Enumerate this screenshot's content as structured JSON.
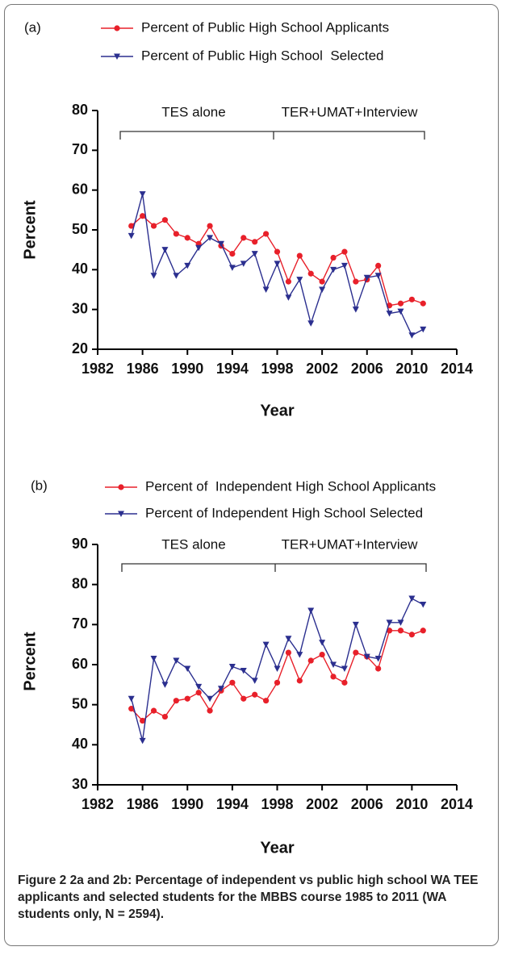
{
  "chart_data": [
    {
      "type": "line",
      "panel": "(a)",
      "annotations": [
        "TES alone",
        "TER+UMAT+Interview"
      ],
      "x_label": "Year",
      "y_label": "Percent",
      "x": [
        1985,
        1986,
        1987,
        1988,
        1989,
        1990,
        1991,
        1992,
        1993,
        1994,
        1995,
        1996,
        1997,
        1998,
        1999,
        2000,
        2001,
        2002,
        2003,
        2004,
        2005,
        2006,
        2007,
        2008,
        2009,
        2010,
        2011
      ],
      "xlim": [
        1982,
        2014
      ],
      "xticks": [
        1982,
        1986,
        1990,
        1994,
        1998,
        2002,
        2006,
        2010,
        2014
      ],
      "ylim": [
        20,
        80
      ],
      "yticks": [
        20,
        30,
        40,
        50,
        60,
        70,
        80
      ],
      "series": [
        {
          "name": "Percent of Public High School Applicants",
          "color": "#e8202a",
          "marker": "circle",
          "values": [
            51,
            53.5,
            51,
            52.5,
            49,
            48,
            46.5,
            51,
            46,
            44,
            48,
            47,
            49,
            44.5,
            37,
            43.5,
            39,
            37,
            43,
            44.5,
            37,
            37.5,
            41,
            31,
            31.5,
            32.5,
            31.5
          ]
        },
        {
          "name": "Percent of Public High School  Selected",
          "color": "#2b2f8f",
          "marker": "triangle-down",
          "values": [
            48.5,
            59,
            38.5,
            45,
            38.5,
            41,
            45.5,
            48,
            46.5,
            40.5,
            41.5,
            44,
            35,
            41.5,
            33,
            37.5,
            26.5,
            35,
            40,
            41,
            30,
            38,
            38.5,
            29,
            29.5,
            23.5,
            25
          ]
        }
      ]
    },
    {
      "type": "line",
      "panel": "(b)",
      "annotations": [
        "TES alone",
        "TER+UMAT+Interview"
      ],
      "x_label": "Year",
      "y_label": "Percent",
      "x": [
        1985,
        1986,
        1987,
        1988,
        1989,
        1990,
        1991,
        1992,
        1993,
        1994,
        1995,
        1996,
        1997,
        1998,
        1999,
        2000,
        2001,
        2002,
        2003,
        2004,
        2005,
        2006,
        2007,
        2008,
        2009,
        2010,
        2011
      ],
      "xlim": [
        1982,
        2014
      ],
      "xticks": [
        1982,
        1986,
        1990,
        1994,
        1998,
        2002,
        2006,
        2010,
        2014
      ],
      "ylim": [
        30,
        90
      ],
      "yticks": [
        30,
        40,
        50,
        60,
        70,
        80,
        90
      ],
      "series": [
        {
          "name": "Percent of  Independent High School Applicants",
          "color": "#e8202a",
          "marker": "circle",
          "values": [
            49,
            46,
            48.5,
            47,
            51,
            51.5,
            53,
            48.5,
            53.5,
            55.5,
            51.5,
            52.5,
            51,
            55.5,
            63,
            56,
            61,
            62.5,
            57,
            55.5,
            63,
            62,
            59,
            68.5,
            68.5,
            67.5,
            68.5
          ]
        },
        {
          "name": "Percent of Independent High School Selected",
          "color": "#2b2f8f",
          "marker": "triangle-down",
          "values": [
            51.5,
            41,
            61.5,
            55,
            61,
            59,
            54.5,
            51.5,
            54,
            59.5,
            58.5,
            56,
            65,
            59,
            66.5,
            62.5,
            73.5,
            65.5,
            60,
            59,
            70,
            62,
            61.5,
            70.5,
            70.5,
            76.5,
            75
          ]
        }
      ]
    }
  ],
  "caption": {
    "figure_label": "Figure 2",
    "text": "2a and 2b: Percentage of independent vs public high school WA TEE applicants and selected students for the MBBS course 1985 to 2011 (WA students only, N = 2594)."
  }
}
